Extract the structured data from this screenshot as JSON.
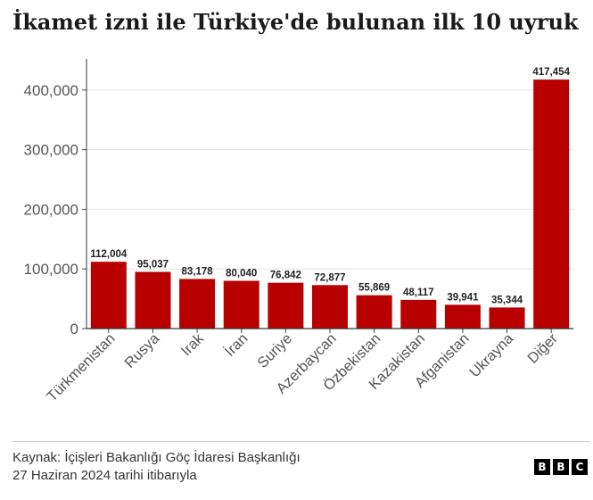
{
  "title": "İkamet izni ile Türkiye'de bulunan ilk 10 uyruk",
  "chart_data": {
    "type": "bar",
    "categories": [
      "Türkmenistan",
      "Rusya",
      "Irak",
      "İran",
      "Suriye",
      "Azerbaycan",
      "Özbekistan",
      "Kazakistan",
      "Afganistan",
      "Ukrayna",
      "Diğer"
    ],
    "values": [
      112004,
      95037,
      83178,
      80040,
      76842,
      72877,
      55869,
      48117,
      39941,
      35344,
      417454
    ],
    "value_labels": [
      "112,004",
      "95,037",
      "83,178",
      "80,040",
      "76,842",
      "72,877",
      "55,869",
      "48,117",
      "39,941",
      "35,344",
      "417,454"
    ],
    "yticks": [
      0,
      100000,
      200000,
      300000,
      400000
    ],
    "ytick_labels": [
      "0",
      "100,000",
      "200,000",
      "300,000",
      "400,000"
    ],
    "ylim": [
      0,
      450000
    ],
    "bar_color": "#b80000",
    "grid": true
  },
  "source": {
    "line1": "Kaynak: İçişleri Bakanlığı Göç İdaresi Başkanlığı",
    "line2": "27 Haziran 2024 tarihi itibarıyla"
  },
  "logo": {
    "letters": [
      "B",
      "B",
      "C"
    ]
  }
}
